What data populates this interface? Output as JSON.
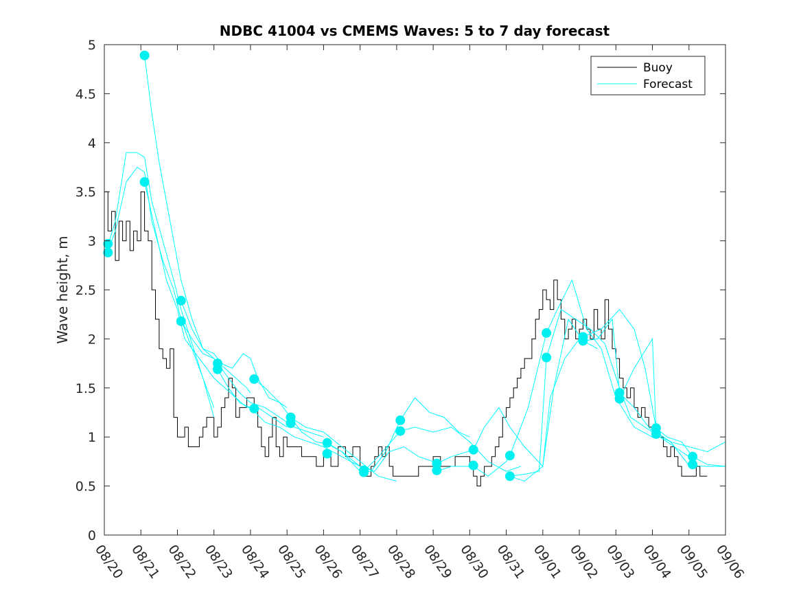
{
  "chart_data": {
    "type": "line",
    "title": "NDBC 41004 vs CMEMS Waves: 5 to 7 day forecast",
    "xlabel": "",
    "ylabel": "Wave height, m",
    "xlim_days": [
      0,
      17
    ],
    "ylim": [
      0,
      5
    ],
    "yticks": [
      0,
      0.5,
      1,
      1.5,
      2,
      2.5,
      3,
      3.5,
      4,
      4.5,
      5
    ],
    "ytick_labels": [
      "0",
      "0.5",
      "1",
      "1.5",
      "2",
      "2.5",
      "3",
      "3.5",
      "4",
      "4.5",
      "5"
    ],
    "xtick_labels": [
      "08/20",
      "08/21",
      "08/22",
      "08/23",
      "08/24",
      "08/25",
      "08/26",
      "08/27",
      "08/28",
      "08/29",
      "08/30",
      "08/31",
      "09/01",
      "09/02",
      "09/03",
      "09/04",
      "09/05",
      "09/06"
    ],
    "legend": {
      "position": "top-right",
      "entries": [
        "Buoy",
        "Forecast"
      ]
    },
    "colors": {
      "buoy": "#000000",
      "forecast": "#00ffff",
      "marker": "#00f0f0",
      "axes": "#262626"
    },
    "buoy": {
      "name": "Buoy",
      "x": [
        0,
        0.1,
        0.2,
        0.3,
        0.4,
        0.5,
        0.6,
        0.7,
        0.8,
        0.9,
        1.0,
        1.1,
        1.2,
        1.3,
        1.4,
        1.5,
        1.6,
        1.7,
        1.8,
        1.9,
        2.0,
        2.1,
        2.2,
        2.3,
        2.4,
        2.5,
        2.6,
        2.7,
        2.8,
        2.9,
        3.0,
        3.1,
        3.2,
        3.3,
        3.4,
        3.5,
        3.6,
        3.7,
        3.8,
        3.9,
        4.0,
        4.1,
        4.2,
        4.3,
        4.4,
        4.5,
        4.6,
        4.7,
        4.8,
        4.9,
        5.0,
        5.2,
        5.4,
        5.6,
        5.8,
        6.0,
        6.2,
        6.4,
        6.6,
        6.8,
        7.0,
        7.1,
        7.2,
        7.3,
        7.4,
        7.5,
        7.6,
        7.7,
        7.8,
        7.9,
        8.0,
        8.2,
        8.4,
        8.6,
        8.8,
        9.0,
        9.2,
        9.4,
        9.6,
        9.8,
        10.0,
        10.1,
        10.2,
        10.3,
        10.4,
        10.5,
        10.6,
        10.7,
        10.8,
        10.9,
        11.0,
        11.1,
        11.2,
        11.3,
        11.4,
        11.5,
        11.6,
        11.7,
        11.8,
        11.9,
        12.0,
        12.1,
        12.2,
        12.3,
        12.4,
        12.5,
        12.6,
        12.7,
        12.8,
        12.9,
        13.0,
        13.1,
        13.2,
        13.3,
        13.4,
        13.5,
        13.6,
        13.7,
        13.8,
        13.9,
        14.0,
        14.1,
        14.2,
        14.3,
        14.4,
        14.5,
        14.6,
        14.7,
        14.8,
        14.9,
        15.0,
        15.1,
        15.2,
        15.3,
        15.4,
        15.5,
        15.6,
        15.7,
        15.8,
        15.9,
        16.0,
        16.1,
        16.2,
        16.3,
        16.4
      ],
      "y": [
        3.5,
        3.1,
        3.3,
        2.8,
        3.2,
        3.0,
        3.2,
        2.9,
        3.1,
        3.0,
        3.5,
        3.1,
        3.0,
        2.5,
        2.2,
        1.9,
        1.8,
        1.7,
        1.9,
        1.2,
        1.0,
        1.0,
        1.1,
        0.9,
        0.9,
        0.9,
        1.0,
        1.1,
        1.2,
        1.2,
        1.0,
        1.1,
        1.3,
        1.4,
        1.6,
        1.5,
        1.2,
        1.3,
        1.3,
        1.4,
        1.4,
        1.3,
        1.1,
        0.9,
        0.8,
        1.0,
        1.2,
        0.9,
        0.8,
        1.0,
        0.9,
        0.9,
        0.8,
        0.8,
        0.7,
        0.8,
        0.7,
        0.9,
        0.8,
        0.9,
        0.7,
        0.6,
        0.6,
        0.7,
        0.8,
        0.9,
        0.8,
        0.9,
        0.7,
        0.6,
        0.6,
        0.6,
        0.6,
        0.7,
        0.7,
        0.8,
        0.7,
        0.7,
        0.8,
        0.8,
        0.7,
        0.6,
        0.5,
        0.6,
        0.7,
        0.7,
        0.8,
        0.9,
        1.0,
        1.2,
        1.3,
        1.4,
        1.5,
        1.6,
        1.7,
        1.8,
        1.8,
        2.0,
        2.2,
        2.3,
        2.5,
        2.4,
        2.3,
        2.6,
        2.4,
        2.2,
        2.0,
        2.1,
        2.2,
        2.0,
        2.1,
        2.2,
        2.1,
        2.0,
        2.3,
        2.1,
        2.0,
        2.4,
        2.1,
        1.9,
        1.8,
        1.6,
        1.5,
        1.4,
        1.5,
        1.3,
        1.2,
        1.3,
        1.2,
        1.1,
        1.0,
        1.1,
        1.0,
        0.9,
        0.8,
        0.9,
        0.8,
        0.7,
        0.6,
        0.6,
        0.6,
        0.6,
        0.7,
        0.6,
        0.6
      ]
    },
    "forecasts": [
      {
        "name": "Forecast",
        "x": [
          0.1,
          0.3,
          0.6,
          0.9,
          1.1,
          1.3,
          1.6,
          1.9,
          2.1,
          2.4,
          2.7,
          3.0
        ],
        "y": [
          2.9,
          3.1,
          3.6,
          3.75,
          3.7,
          3.2,
          2.8,
          2.5,
          2.2,
          1.9,
          1.6,
          1.3
        ]
      },
      {
        "name": "Forecast",
        "x": [
          0.1,
          0.3,
          0.6,
          0.9,
          1.1,
          1.3,
          1.6,
          1.9,
          2.1,
          2.4,
          2.7,
          3.0
        ],
        "y": [
          2.95,
          3.2,
          3.9,
          3.9,
          3.85,
          3.4,
          3.0,
          2.6,
          2.3,
          1.95,
          1.6,
          1.2
        ]
      },
      {
        "name": "Forecast",
        "x": [
          1.1,
          1.3,
          1.5,
          1.7,
          1.9,
          2.1,
          2.4,
          2.7,
          3.0,
          3.3,
          3.6,
          3.9,
          4.0
        ],
        "y": [
          4.89,
          4.3,
          3.8,
          3.4,
          3.0,
          2.6,
          2.2,
          1.9,
          1.8,
          1.7,
          1.6,
          1.5,
          1.45
        ]
      },
      {
        "name": "Forecast",
        "x": [
          1.1,
          1.4,
          1.7,
          2.0,
          2.2,
          2.5,
          2.8,
          3.0,
          3.3,
          3.6,
          3.9,
          4.2,
          4.6,
          5.0
        ],
        "y": [
          3.6,
          3.1,
          2.6,
          2.3,
          2.0,
          1.85,
          1.7,
          1.6,
          1.5,
          1.4,
          1.3,
          1.3,
          1.2,
          1.1
        ]
      },
      {
        "name": "Forecast",
        "x": [
          2.1,
          2.4,
          2.7,
          3.0,
          3.2,
          3.5,
          3.8,
          4.0,
          4.2,
          4.5,
          4.8,
          5.0
        ],
        "y": [
          2.39,
          2.1,
          1.9,
          1.85,
          1.75,
          1.7,
          1.85,
          1.8,
          1.6,
          1.4,
          1.35,
          1.3
        ]
      },
      {
        "name": "Forecast",
        "x": [
          2.1,
          2.4,
          2.7,
          3.0,
          3.1,
          3.4,
          3.7,
          4.0,
          4.4,
          4.8,
          5.2,
          5.6,
          6.0
        ],
        "y": [
          2.18,
          2.0,
          1.85,
          1.8,
          1.75,
          1.6,
          1.45,
          1.35,
          1.3,
          1.2,
          1.1,
          1.05,
          1.0
        ]
      },
      {
        "name": "Forecast",
        "x": [
          3.1,
          3.4,
          3.7,
          4.0,
          4.4,
          4.8,
          5.2,
          5.6,
          6.0,
          6.5,
          7.0
        ],
        "y": [
          1.69,
          1.5,
          1.35,
          1.3,
          1.15,
          1.1,
          1.0,
          0.95,
          0.9,
          0.8,
          0.7
        ]
      },
      {
        "name": "Forecast",
        "x": [
          4.1,
          4.4,
          4.8,
          5.1,
          5.5,
          6.0,
          6.5,
          7.0,
          7.5,
          8.0
        ],
        "y": [
          1.59,
          1.5,
          1.35,
          1.2,
          1.1,
          1.05,
          0.9,
          0.75,
          0.6,
          0.55
        ]
      },
      {
        "name": "Forecast",
        "x": [
          5.1,
          5.4,
          5.8,
          6.1,
          6.5,
          7.0,
          7.4,
          7.8,
          8.2,
          8.6,
          9.0
        ],
        "y": [
          1.2,
          1.05,
          0.95,
          0.93,
          0.85,
          0.7,
          0.65,
          0.85,
          0.9,
          0.8,
          0.75
        ]
      },
      {
        "name": "Forecast",
        "x": [
          6.1,
          6.5,
          7.0,
          7.3,
          7.7,
          8.1,
          8.5,
          8.9,
          9.3,
          9.7,
          10.0
        ],
        "y": [
          0.94,
          0.85,
          0.65,
          0.65,
          0.85,
          1.17,
          1.4,
          1.25,
          1.2,
          1.05,
          1.0
        ]
      },
      {
        "name": "Forecast",
        "x": [
          7.1,
          7.5,
          8.1,
          8.5,
          9.0,
          9.5,
          10.0,
          10.5,
          11.0,
          11.4
        ],
        "y": [
          0.65,
          0.8,
          1.06,
          1.1,
          1.05,
          1.1,
          0.95,
          0.75,
          0.65,
          0.7
        ]
      },
      {
        "name": "Forecast",
        "x": [
          9.1,
          9.5,
          10.1,
          10.4,
          10.8,
          11.1,
          11.5,
          12.0,
          12.2,
          12.6,
          13.0,
          13.5
        ],
        "y": [
          0.73,
          0.8,
          0.87,
          1.1,
          1.3,
          1.1,
          0.9,
          0.7,
          1.4,
          1.8,
          2.0,
          1.9
        ]
      },
      {
        "name": "Forecast",
        "x": [
          9.1,
          9.5,
          10.1,
          10.5,
          11.0,
          11.1,
          11.6,
          12.1,
          12.4,
          12.8,
          13.2,
          13.6,
          14.0,
          14.5,
          15.0
        ],
        "y": [
          0.65,
          0.7,
          0.7,
          0.6,
          0.75,
          0.81,
          1.3,
          2.06,
          2.3,
          2.6,
          2.1,
          1.9,
          1.4,
          1.1,
          1.0
        ]
      },
      {
        "name": "Forecast",
        "x": [
          11.1,
          11.5,
          11.9,
          12.1,
          12.5,
          12.9,
          13.3,
          13.7,
          14.1,
          14.4,
          14.8,
          15.2,
          15.6,
          16.0
        ],
        "y": [
          0.6,
          0.62,
          0.65,
          1.81,
          2.3,
          2.2,
          2.1,
          1.95,
          1.5,
          1.2,
          1.1,
          1.0,
          0.9,
          0.8
        ]
      },
      {
        "name": "Forecast",
        "x": [
          11.1,
          11.5,
          12.0,
          12.3,
          12.7,
          13.1,
          13.5,
          13.9,
          14.1,
          14.5,
          14.9,
          15.1,
          15.5,
          16.0,
          16.5,
          17.0
        ],
        "y": [
          0.6,
          0.55,
          0.7,
          1.5,
          2.2,
          1.98,
          2.0,
          2.2,
          1.45,
          1.3,
          1.1,
          1.02,
          0.95,
          0.9,
          0.85,
          0.95
        ]
      },
      {
        "name": "Forecast",
        "x": [
          13.1,
          13.6,
          14.1,
          14.5,
          14.8,
          15.1,
          15.4,
          15.8,
          16.1,
          16.5,
          17.0
        ],
        "y": [
          2.02,
          2.1,
          2.3,
          2.1,
          1.7,
          1.09,
          1.0,
          0.95,
          0.8,
          0.72,
          0.7
        ]
      },
      {
        "name": "Forecast",
        "x": [
          14.1,
          14.5,
          15.0,
          15.1,
          15.5,
          16.0,
          16.5,
          17.0
        ],
        "y": [
          1.39,
          1.7,
          2.0,
          1.05,
          0.95,
          0.71,
          0.7,
          0.7
        ]
      }
    ],
    "markers": {
      "x": [
        0.1,
        0.1,
        1.1,
        1.1,
        2.1,
        2.1,
        3.1,
        3.1,
        4.1,
        4.1,
        5.1,
        5.1,
        6.1,
        6.1,
        7.1,
        7.1,
        8.1,
        8.1,
        9.1,
        9.1,
        10.1,
        10.1,
        11.1,
        11.1,
        12.1,
        12.1,
        13.1,
        13.1,
        14.1,
        14.1,
        15.1,
        15.1,
        16.1,
        16.1
      ],
      "y": [
        2.97,
        2.88,
        4.89,
        3.6,
        2.39,
        2.18,
        1.75,
        1.69,
        1.59,
        1.29,
        1.2,
        1.14,
        0.94,
        0.83,
        0.66,
        0.64,
        1.17,
        1.06,
        0.73,
        0.66,
        0.87,
        0.71,
        0.81,
        0.6,
        2.06,
        1.81,
        2.02,
        1.98,
        1.45,
        1.39,
        1.09,
        1.03,
        0.8,
        0.72
      ]
    }
  }
}
